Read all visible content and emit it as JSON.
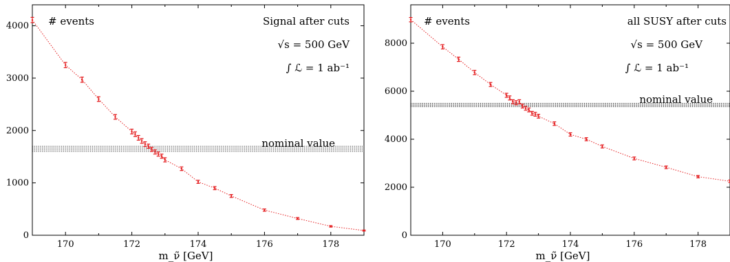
{
  "chart_data": [
    {
      "type": "scatter",
      "title": "",
      "xlabel": "m_ν̃ [GeV]",
      "ylabel": "",
      "xlim": [
        169,
        179
      ],
      "ylim": [
        0,
        4400
      ],
      "xticks": [
        170,
        172,
        174,
        176,
        178
      ],
      "yticks": [
        0,
        1000,
        2000,
        3000,
        4000
      ],
      "grid": false,
      "corner_label": "# events",
      "annotations": [
        "Signal after cuts",
        "√s = 500 GeV",
        "∫ ℒ = 1 ab⁻¹"
      ],
      "band_label": "nominal value",
      "band": [
        1600,
        1700
      ],
      "series": [
        {
          "color": "#e41a1c",
          "x": [
            169,
            170,
            170.5,
            171,
            171.5,
            172,
            172.1,
            172.2,
            172.3,
            172.4,
            172.5,
            172.6,
            172.7,
            172.8,
            172.9,
            173,
            173.5,
            174,
            174.5,
            175,
            176,
            177,
            178,
            179
          ],
          "y": [
            4110,
            3250,
            2970,
            2600,
            2260,
            1980,
            1930,
            1860,
            1800,
            1740,
            1700,
            1640,
            1590,
            1550,
            1510,
            1440,
            1270,
            1020,
            900,
            750,
            480,
            320,
            170,
            90
          ],
          "err": [
            50,
            50,
            50,
            45,
            45,
            45,
            45,
            45,
            45,
            45,
            40,
            40,
            40,
            40,
            40,
            40,
            35,
            30,
            30,
            28,
            22,
            18,
            14,
            10
          ]
        }
      ]
    },
    {
      "type": "scatter",
      "title": "",
      "xlabel": "m_ν̃ [GeV]",
      "ylabel": "",
      "xlim": [
        169,
        179
      ],
      "ylim": [
        0,
        9600
      ],
      "xticks": [
        170,
        172,
        174,
        176,
        178
      ],
      "yticks": [
        0,
        2000,
        4000,
        6000,
        8000
      ],
      "grid": false,
      "corner_label": "# events",
      "annotations": [
        "all SUSY after cuts",
        "√s = 500 GeV",
        "∫ ℒ = 1 ab⁻¹"
      ],
      "band_label": "nominal value",
      "band": [
        5350,
        5500
      ],
      "series": [
        {
          "color": "#e41a1c",
          "x": [
            169,
            170,
            170.5,
            171,
            171.5,
            172,
            172.1,
            172.2,
            172.3,
            172.4,
            172.5,
            172.6,
            172.7,
            172.8,
            172.9,
            173,
            173.5,
            174,
            174.5,
            175,
            176,
            177,
            178,
            179
          ],
          "y": [
            8980,
            7850,
            7330,
            6780,
            6280,
            5830,
            5720,
            5560,
            5520,
            5560,
            5380,
            5290,
            5220,
            5080,
            5040,
            4960,
            4650,
            4200,
            4000,
            3700,
            3200,
            2830,
            2440,
            2250
          ],
          "err": [
            90,
            90,
            90,
            90,
            85,
            85,
            85,
            85,
            85,
            85,
            80,
            80,
            80,
            80,
            80,
            80,
            75,
            70,
            65,
            65,
            60,
            55,
            50,
            50
          ]
        }
      ]
    }
  ]
}
